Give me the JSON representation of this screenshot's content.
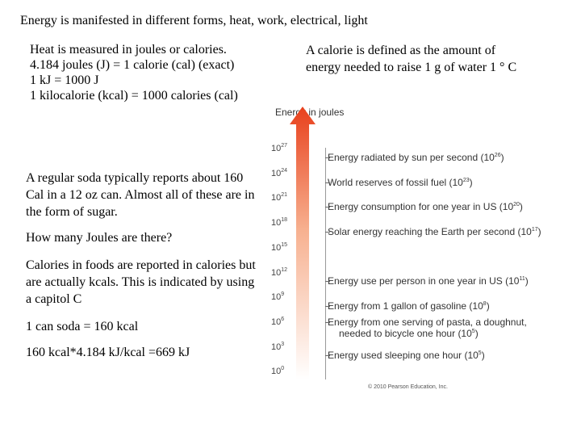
{
  "title": "Energy is manifested in different forms, heat, work, electrical, light",
  "left_lines": [
    "Heat is measured in joules or calories.",
    "4.184 joules (J) = 1 calorie (cal)  (exact)",
    "1 kJ = 1000 J",
    "1 kilocalorie (kcal) = 1000 calories (cal)"
  ],
  "right_lines": [
    "A calorie is defined as the amount of",
    "energy needed to raise 1 g of water 1 ° C"
  ],
  "soda_text": "A regular soda typically reports about 160 Cal in a 12 oz can. Almost all of these are in the form of sugar.",
  "question": "How many Joules are there?",
  "calorie_text": "Calories in foods are reported in calories but are actually kcals. This is indicated by using a capitol C",
  "line1": "1 can soda = 160 kcal",
  "line2": "160 kcal*4.184 kJ/kcal =669 kJ",
  "figure": {
    "title": "Energy in joules",
    "ticks": [
      {
        "base": "10",
        "exp": "27"
      },
      {
        "base": "10",
        "exp": "24"
      },
      {
        "base": "10",
        "exp": "21"
      },
      {
        "base": "10",
        "exp": "18"
      },
      {
        "base": "10",
        "exp": "15"
      },
      {
        "base": "10",
        "exp": "12"
      },
      {
        "base": "10",
        "exp": "9"
      },
      {
        "base": "10",
        "exp": "6"
      },
      {
        "base": "10",
        "exp": "3"
      },
      {
        "base": "10",
        "exp": "0"
      }
    ],
    "annotations": [
      {
        "text": "Energy radiated by sun per second (10",
        "exp": "26",
        "end": ")"
      },
      {
        "text": "World reserves of fossil fuel (10",
        "exp": "23",
        "end": ")"
      },
      {
        "text": "Energy consumption for one year in US (10",
        "exp": "20",
        "end": ")"
      },
      {
        "text": "Solar energy reaching the Earth per second (10",
        "exp": "17",
        "end": ")"
      },
      {
        "text": "Energy use per person in one year in US (10",
        "exp": "11",
        "end": ")"
      },
      {
        "text": "Energy from 1 gallon of gasoline (10",
        "exp": "8",
        "end": ")"
      },
      {
        "text": "Energy from one serving of pasta, a doughnut,",
        "exp": "",
        "end": ""
      },
      {
        "text": "needed to bicycle one hour (10",
        "exp": "5",
        "end": ")"
      },
      {
        "text": "Energy used sleeping one hour (10",
        "exp": "5",
        "end": ")"
      }
    ],
    "credit": "© 2010 Pearson Education, Inc."
  }
}
